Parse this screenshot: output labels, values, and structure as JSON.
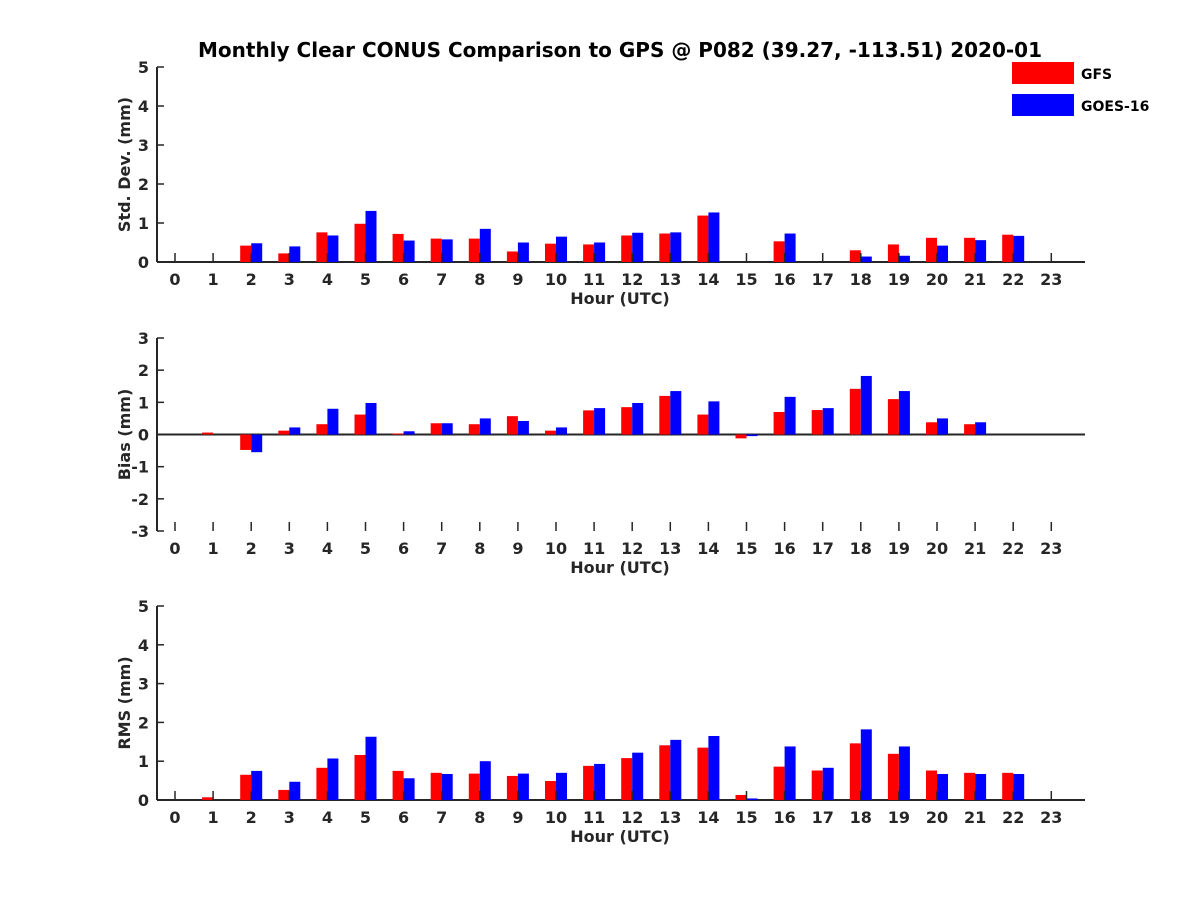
{
  "title": "Monthly Clear CONUS Comparison to GPS @ P082 (39.27, -113.51) 2020-01",
  "legend": [
    {
      "name": "GFS",
      "color": "#ff0000"
    },
    {
      "name": "GOES-16",
      "color": "#0000ff"
    }
  ],
  "chart_data": [
    {
      "type": "bar",
      "ylabel": "Std. Dev. (mm)",
      "xlabel": "Hour (UTC)",
      "ylim": [
        0,
        5
      ],
      "yticks": [
        0,
        1,
        2,
        3,
        4,
        5
      ],
      "categories": [
        "0",
        "1",
        "2",
        "3",
        "4",
        "5",
        "6",
        "7",
        "8",
        "9",
        "10",
        "11",
        "12",
        "13",
        "14",
        "15",
        "16",
        "17",
        "18",
        "19",
        "20",
        "21",
        "22",
        "23"
      ],
      "series": [
        {
          "name": "GFS",
          "color": "#ff0000",
          "values": [
            null,
            null,
            0.42,
            0.22,
            0.76,
            0.98,
            0.72,
            0.6,
            0.6,
            0.27,
            0.47,
            0.45,
            0.68,
            0.73,
            1.19,
            null,
            0.53,
            null,
            0.3,
            0.45,
            0.62,
            0.62,
            0.7,
            null
          ]
        },
        {
          "name": "GOES-16",
          "color": "#0000ff",
          "values": [
            null,
            null,
            0.48,
            0.4,
            0.68,
            1.31,
            0.55,
            0.58,
            0.85,
            0.5,
            0.65,
            0.5,
            0.75,
            0.76,
            1.27,
            null,
            0.73,
            null,
            0.14,
            0.16,
            0.42,
            0.56,
            0.67,
            null
          ]
        }
      ]
    },
    {
      "type": "bar",
      "ylabel": "Bias (mm)",
      "xlabel": "Hour (UTC)",
      "ylim": [
        -3,
        3
      ],
      "yticks": [
        -3,
        -2,
        -1,
        0,
        1,
        2,
        3
      ],
      "categories": [
        "0",
        "1",
        "2",
        "3",
        "4",
        "5",
        "6",
        "7",
        "8",
        "9",
        "10",
        "11",
        "12",
        "13",
        "14",
        "15",
        "16",
        "17",
        "18",
        "19",
        "20",
        "21",
        "22",
        "23"
      ],
      "series": [
        {
          "name": "GFS",
          "color": "#ff0000",
          "values": [
            null,
            0.06,
            -0.48,
            0.12,
            0.32,
            0.62,
            0.03,
            0.35,
            0.32,
            0.57,
            0.12,
            0.75,
            0.85,
            1.2,
            0.62,
            -0.12,
            0.7,
            0.76,
            1.42,
            1.1,
            0.38,
            0.32,
            null,
            null
          ]
        },
        {
          "name": "GOES-16",
          "color": "#0000ff",
          "values": [
            null,
            null,
            -0.55,
            0.22,
            0.8,
            0.98,
            0.1,
            0.35,
            0.5,
            0.42,
            0.22,
            0.82,
            0.98,
            1.35,
            1.03,
            -0.05,
            1.17,
            0.82,
            1.82,
            1.35,
            0.5,
            0.38,
            null,
            null
          ]
        }
      ]
    },
    {
      "type": "bar",
      "ylabel": "RMS (mm)",
      "xlabel": "Hour (UTC)",
      "ylim": [
        0,
        5
      ],
      "yticks": [
        0,
        1,
        2,
        3,
        4,
        5
      ],
      "categories": [
        "0",
        "1",
        "2",
        "3",
        "4",
        "5",
        "6",
        "7",
        "8",
        "9",
        "10",
        "11",
        "12",
        "13",
        "14",
        "15",
        "16",
        "17",
        "18",
        "19",
        "20",
        "21",
        "22",
        "23"
      ],
      "series": [
        {
          "name": "GFS",
          "color": "#ff0000",
          "values": [
            null,
            0.07,
            0.65,
            0.26,
            0.83,
            1.16,
            0.75,
            0.7,
            0.68,
            0.62,
            0.49,
            0.88,
            1.08,
            1.41,
            1.35,
            0.13,
            0.86,
            0.76,
            1.46,
            1.19,
            0.76,
            0.7,
            0.7,
            null
          ]
        },
        {
          "name": "GOES-16",
          "color": "#0000ff",
          "values": [
            null,
            null,
            0.75,
            0.47,
            1.07,
            1.63,
            0.56,
            0.67,
            1.0,
            0.68,
            0.7,
            0.93,
            1.22,
            1.55,
            1.65,
            0.04,
            1.38,
            0.83,
            1.82,
            1.38,
            0.67,
            0.67,
            0.67,
            null
          ]
        }
      ]
    }
  ]
}
